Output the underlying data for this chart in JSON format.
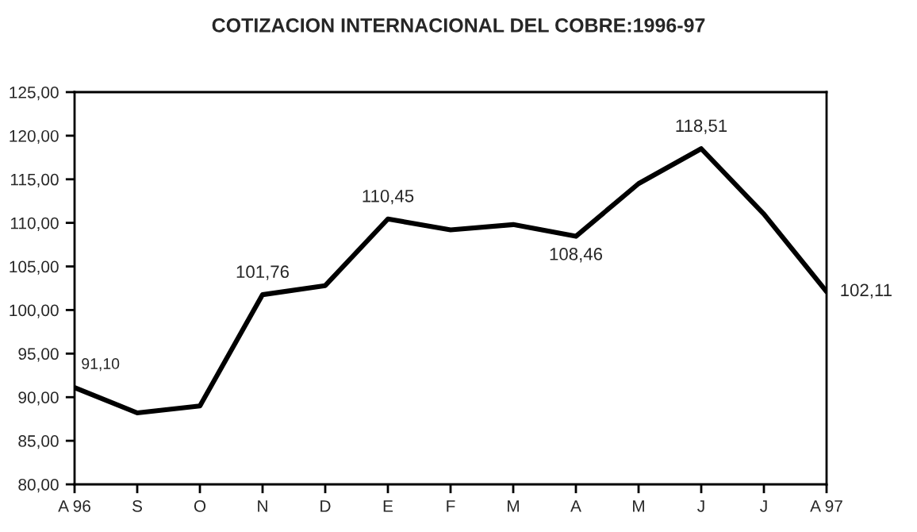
{
  "chart_data": {
    "type": "line",
    "title": "COTIZACION INTERNACIONAL DEL COBRE:1996-97",
    "categories": [
      "A 96",
      "S",
      "O",
      "N",
      "D",
      "E",
      "F",
      "M",
      "A",
      "M",
      "J",
      "J",
      "A 97"
    ],
    "series": [
      {
        "color": "#000000",
        "values": [
          91.1,
          88.2,
          89.0,
          101.76,
          102.8,
          110.45,
          109.2,
          109.8,
          108.46,
          114.5,
          118.51,
          111.0,
          102.11
        ],
        "value_labels": [
          "91,10",
          null,
          null,
          "101,76",
          null,
          "110,45",
          null,
          null,
          "108,46",
          null,
          "118,51",
          null,
          "102,11"
        ]
      }
    ],
    "ylim": [
      80,
      125
    ],
    "yticks": [
      {
        "value": 80,
        "label": "80,00"
      },
      {
        "value": 85,
        "label": "85,00"
      },
      {
        "value": 90,
        "label": "90,00"
      },
      {
        "value": 95,
        "label": "95,00"
      },
      {
        "value": 100,
        "label": "100,00"
      },
      {
        "value": 105,
        "label": "105,00"
      },
      {
        "value": 110,
        "label": "110,00"
      },
      {
        "value": 115,
        "label": "115,00"
      },
      {
        "value": 120,
        "label": "120,00"
      },
      {
        "value": 125,
        "label": "125,00"
      }
    ],
    "grid": false,
    "marker": "none",
    "line_style": "solid"
  }
}
